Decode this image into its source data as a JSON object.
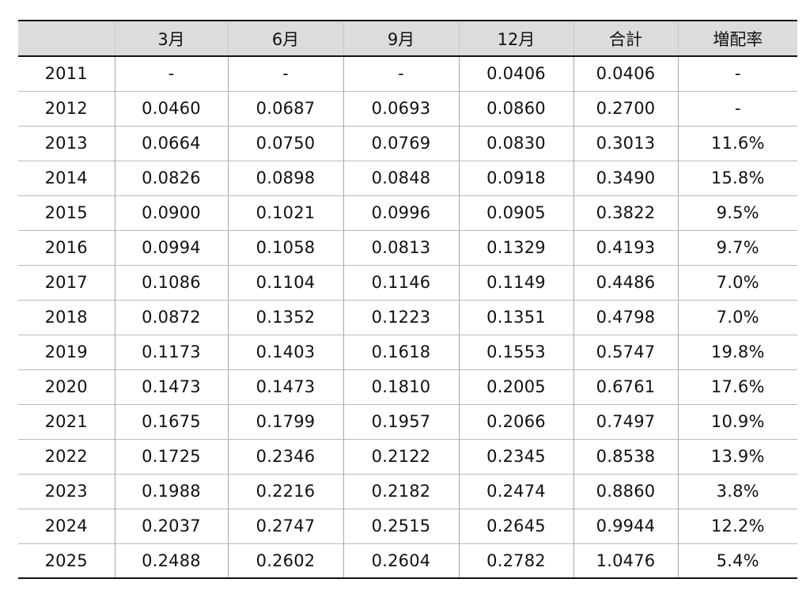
{
  "table": {
    "headers": [
      "",
      "3月",
      "6月",
      "9月",
      "12月",
      "合計",
      "増配率"
    ],
    "rows": [
      [
        "2011",
        "-",
        "-",
        "-",
        "0.0406",
        "0.0406",
        "-"
      ],
      [
        "2012",
        "0.0460",
        "0.0687",
        "0.0693",
        "0.0860",
        "0.2700",
        "-"
      ],
      [
        "2013",
        "0.0664",
        "0.0750",
        "0.0769",
        "0.0830",
        "0.3013",
        "11.6%"
      ],
      [
        "2014",
        "0.0826",
        "0.0898",
        "0.0848",
        "0.0918",
        "0.3490",
        "15.8%"
      ],
      [
        "2015",
        "0.0900",
        "0.1021",
        "0.0996",
        "0.0905",
        "0.3822",
        "9.5%"
      ],
      [
        "2016",
        "0.0994",
        "0.1058",
        "0.0813",
        "0.1329",
        "0.4193",
        "9.7%"
      ],
      [
        "2017",
        "0.1086",
        "0.1104",
        "0.1146",
        "0.1149",
        "0.4486",
        "7.0%"
      ],
      [
        "2018",
        "0.0872",
        "0.1352",
        "0.1223",
        "0.1351",
        "0.4798",
        "7.0%"
      ],
      [
        "2019",
        "0.1173",
        "0.1403",
        "0.1618",
        "0.1553",
        "0.5747",
        "19.8%"
      ],
      [
        "2020",
        "0.1473",
        "0.1473",
        "0.1810",
        "0.2005",
        "0.6761",
        "17.6%"
      ],
      [
        "2021",
        "0.1675",
        "0.1799",
        "0.1957",
        "0.2066",
        "0.7497",
        "10.9%"
      ],
      [
        "2022",
        "0.1725",
        "0.2346",
        "0.2122",
        "0.2345",
        "0.8538",
        "13.9%"
      ],
      [
        "2023",
        "0.1988",
        "0.2216",
        "0.2182",
        "0.2474",
        "0.8860",
        "3.8%"
      ],
      [
        "2024",
        "0.2037",
        "0.2747",
        "0.2515",
        "0.2645",
        "0.9944",
        "12.2%"
      ],
      [
        "2025",
        "0.2488",
        "0.2602",
        "0.2604",
        "0.2782",
        "1.0476",
        "5.4%"
      ]
    ]
  }
}
